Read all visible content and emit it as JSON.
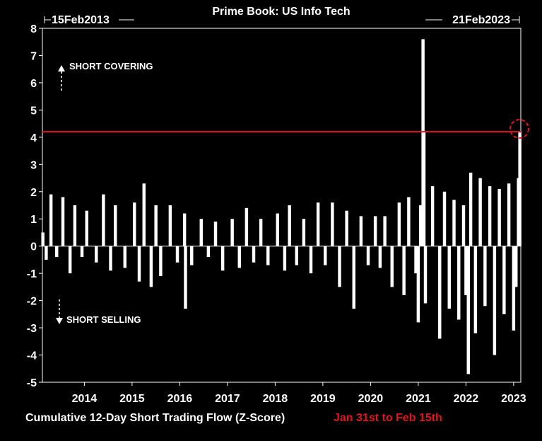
{
  "chart_data": {
    "type": "bar",
    "title": "Prime Book: US Info Tech",
    "start_date_label": "15Feb2013",
    "end_date_label": "21Feb2023",
    "xlabel": "Cumulative 12-Day Short Trading Flow (Z-Score)",
    "highlight_note": "Jan 31st to Feb 15th",
    "ylim": [
      -5,
      8
    ],
    "yticks": [
      "8",
      "7",
      "6",
      "5",
      "4",
      "3",
      "2",
      "1",
      "0",
      "-1",
      "-2",
      "-3",
      "-4",
      "-5"
    ],
    "xticks": [
      "2014",
      "2015",
      "2016",
      "2017",
      "2018",
      "2019",
      "2020",
      "2021",
      "2022",
      "2023"
    ],
    "xlim": [
      2013.12,
      2023.15
    ],
    "reference_line": 4.2,
    "annotations": {
      "up": "SHORT COVERING",
      "down": "SHORT SELLING"
    },
    "series": [
      {
        "x": [
          2013.13,
          2013.2,
          2013.3,
          2013.42,
          2013.55,
          2013.7,
          2013.8,
          2013.95,
          2014.05,
          2014.25,
          2014.4,
          2014.55,
          2014.65,
          2014.85,
          2015.05,
          2015.15,
          2015.25,
          2015.4,
          2015.5,
          2015.6,
          2015.8,
          2015.95,
          2016.1,
          2016.12,
          2016.25,
          2016.45,
          2016.6,
          2016.75,
          2016.9,
          2017.1,
          2017.25,
          2017.4,
          2017.55,
          2017.7,
          2017.85,
          2018.05,
          2018.2,
          2018.3,
          2018.45,
          2018.6,
          2018.75,
          2018.9,
          2019.05,
          2019.2,
          2019.35,
          2019.5,
          2019.65,
          2019.8,
          2019.95,
          2020.1,
          2020.2,
          2020.3,
          2020.45,
          2020.6,
          2020.7,
          2020.8,
          2020.95,
          2021.0,
          2021.05,
          2021.1,
          2021.12,
          2021.15,
          2021.3,
          2021.45,
          2021.55,
          2021.65,
          2021.75,
          2021.85,
          2021.95,
          2022.0,
          2022.05,
          2022.1,
          2022.2,
          2022.3,
          2022.4,
          2022.5,
          2022.6,
          2022.7,
          2022.8,
          2022.9,
          2023.0,
          2023.05,
          2023.1,
          2023.13
        ],
        "y": [
          0.5,
          -0.5,
          1.9,
          -0.4,
          1.8,
          -1.0,
          1.5,
          -0.4,
          1.3,
          -0.6,
          1.9,
          -0.9,
          1.5,
          -0.8,
          1.6,
          -1.3,
          2.3,
          -1.5,
          1.5,
          -1.1,
          1.5,
          -0.6,
          1.2,
          -2.3,
          -0.7,
          1.0,
          -0.4,
          0.9,
          -0.9,
          1.0,
          -0.8,
          1.4,
          -0.6,
          1.0,
          -0.7,
          1.2,
          -0.9,
          1.5,
          -0.7,
          1.0,
          -1.0,
          1.6,
          -0.7,
          1.6,
          -1.5,
          1.3,
          -2.3,
          1.1,
          -0.7,
          1.1,
          -0.8,
          1.1,
          -1.5,
          1.6,
          -1.8,
          1.8,
          -1.0,
          -2.8,
          1.5,
          7.6,
          4.2,
          -2.1,
          2.2,
          -3.4,
          2.0,
          -2.3,
          1.7,
          -2.7,
          1.5,
          -1.8,
          -4.7,
          2.7,
          -3.2,
          2.5,
          -2.2,
          2.2,
          -4.0,
          2.1,
          -2.5,
          2.3,
          -3.1,
          -1.5,
          2.5,
          4.2
        ]
      }
    ]
  }
}
